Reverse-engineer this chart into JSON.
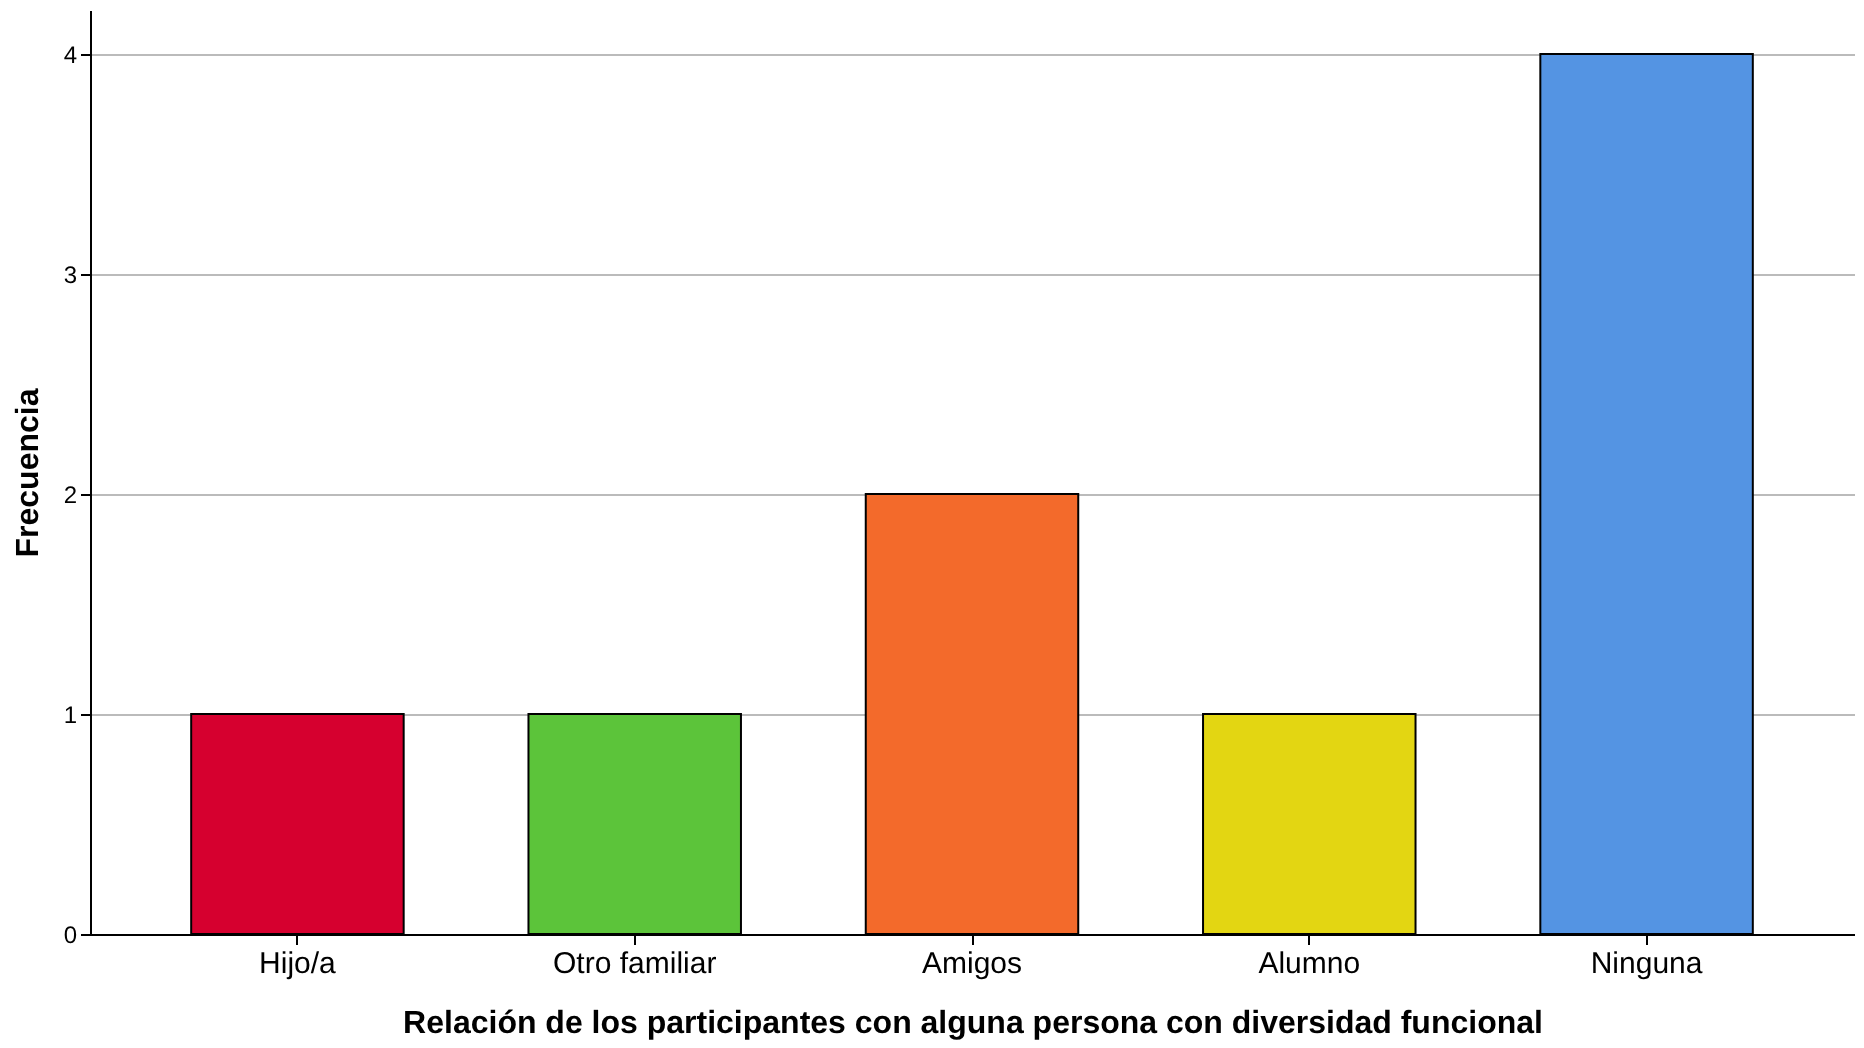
{
  "chart_data": {
    "type": "bar",
    "xlabel": "Relación de los participantes con alguna persona con diversidad funcional",
    "ylabel": "Frecuencia",
    "categories": [
      "Hijo/a",
      "Otro familiar",
      "Amigos",
      "Alumno",
      "Ninguna"
    ],
    "values": [
      1,
      1,
      2,
      1,
      4
    ],
    "colors": [
      "#d6002f",
      "#5cc43a",
      "#f36a2b",
      "#e3d612",
      "#5494e3"
    ],
    "ylim": [
      0,
      4.2
    ],
    "yticks": [
      0,
      1,
      2,
      3,
      4
    ],
    "grid": "y",
    "legend": false
  }
}
